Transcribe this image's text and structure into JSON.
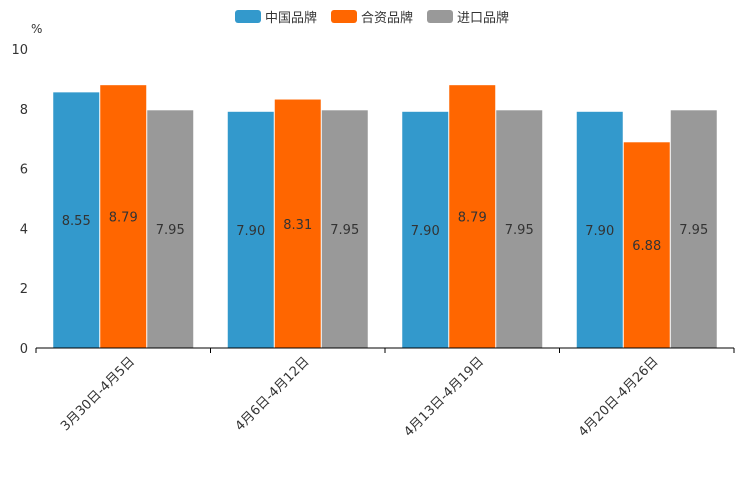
{
  "chart_data": {
    "type": "bar",
    "title": "",
    "ylabel": "%",
    "xlabel": "",
    "ylim": [
      0,
      10
    ],
    "yticks": [
      "0",
      "2",
      "4",
      "6",
      "8",
      "10"
    ],
    "categories": [
      "3月30日-4月5日",
      "4月6日-4月12日",
      "4月13日-4月19日",
      "4月20日-4月26日"
    ],
    "series": [
      {
        "name": "中国品牌",
        "color": "#3399cc",
        "values": [
          8.55,
          7.9,
          7.9,
          7.9
        ],
        "labels": [
          "8.55",
          "7.90",
          "7.90",
          "7.90"
        ]
      },
      {
        "name": "合资品牌",
        "color": "#ff6600",
        "values": [
          8.79,
          8.31,
          8.79,
          6.88
        ],
        "labels": [
          "8.79",
          "8.31",
          "8.79",
          "6.88"
        ]
      },
      {
        "name": "进口品牌",
        "color": "#999999",
        "values": [
          7.95,
          7.95,
          7.95,
          7.95
        ],
        "labels": [
          "7.95",
          "7.95",
          "7.95",
          "7.95"
        ]
      }
    ],
    "legend_position": "top-center",
    "grid": false
  }
}
